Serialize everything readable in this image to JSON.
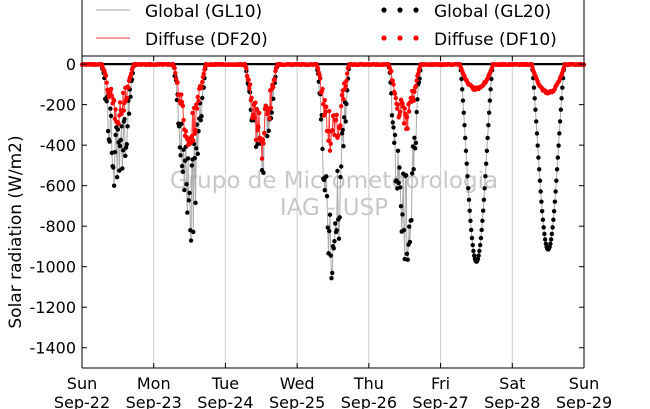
{
  "chart_data": {
    "type": "line",
    "title": "",
    "ylabel": "Solar radiation (W/m2)",
    "xlabel": "",
    "ylim": [
      -1500,
      40
    ],
    "yticks": [
      0,
      -200,
      -400,
      -600,
      -800,
      -1000,
      -1200,
      -1400
    ],
    "x_tick_labels": [
      [
        "Sun",
        "Sep-22"
      ],
      [
        "Mon",
        "Sep-23"
      ],
      [
        "Tue",
        "Sep-24"
      ],
      [
        "Wed",
        "Sep-25"
      ],
      [
        "Thu",
        "Sep-26"
      ],
      [
        "Fri",
        "Sep-27"
      ],
      [
        "Sat",
        "Sep-28"
      ],
      [
        "Sun",
        "Sep-29"
      ]
    ],
    "x_unit": "days since Sun Sep-22 00:00",
    "xlim": [
      0,
      7
    ],
    "grid": "vertical",
    "watermark": [
      "Grupo de Micrometeorologia",
      "IAG - USP"
    ],
    "legend": {
      "placement": "top",
      "entries": [
        {
          "label": "Global (GL10)",
          "style": "line",
          "color": "#aaaaaa"
        },
        {
          "label": "Diffuse (DF20)",
          "style": "line",
          "color": "#ff3b3b"
        },
        {
          "label": "Global (GL20)",
          "style": "dots",
          "color": "#000000"
        },
        {
          "label": "Diffuse (DF10)",
          "style": "dots",
          "color": "#ff0000"
        }
      ]
    },
    "days": [
      {
        "global_peak": -700,
        "diffuse_peak": -300,
        "noise": 0.55
      },
      {
        "global_peak": -930,
        "diffuse_peak": -420,
        "noise": 0.55
      },
      {
        "global_peak": -560,
        "diffuse_peak": -480,
        "noise": 0.6
      },
      {
        "global_peak": -1170,
        "diffuse_peak": -460,
        "noise": 0.5
      },
      {
        "global_peak": -1050,
        "diffuse_peak": -340,
        "noise": 0.5
      },
      {
        "global_peak": -975,
        "diffuse_peak": -130,
        "noise": 0.02
      },
      {
        "global_peak": -915,
        "diffuse_peak": -150,
        "noise": 0.04
      }
    ],
    "colors": {
      "global_line": "#aaaaaa",
      "diffuse_line": "#ff3b3b",
      "global_dots": "#000000",
      "diffuse_dots": "#ff0000",
      "watermark": "#c8c8c8"
    }
  }
}
